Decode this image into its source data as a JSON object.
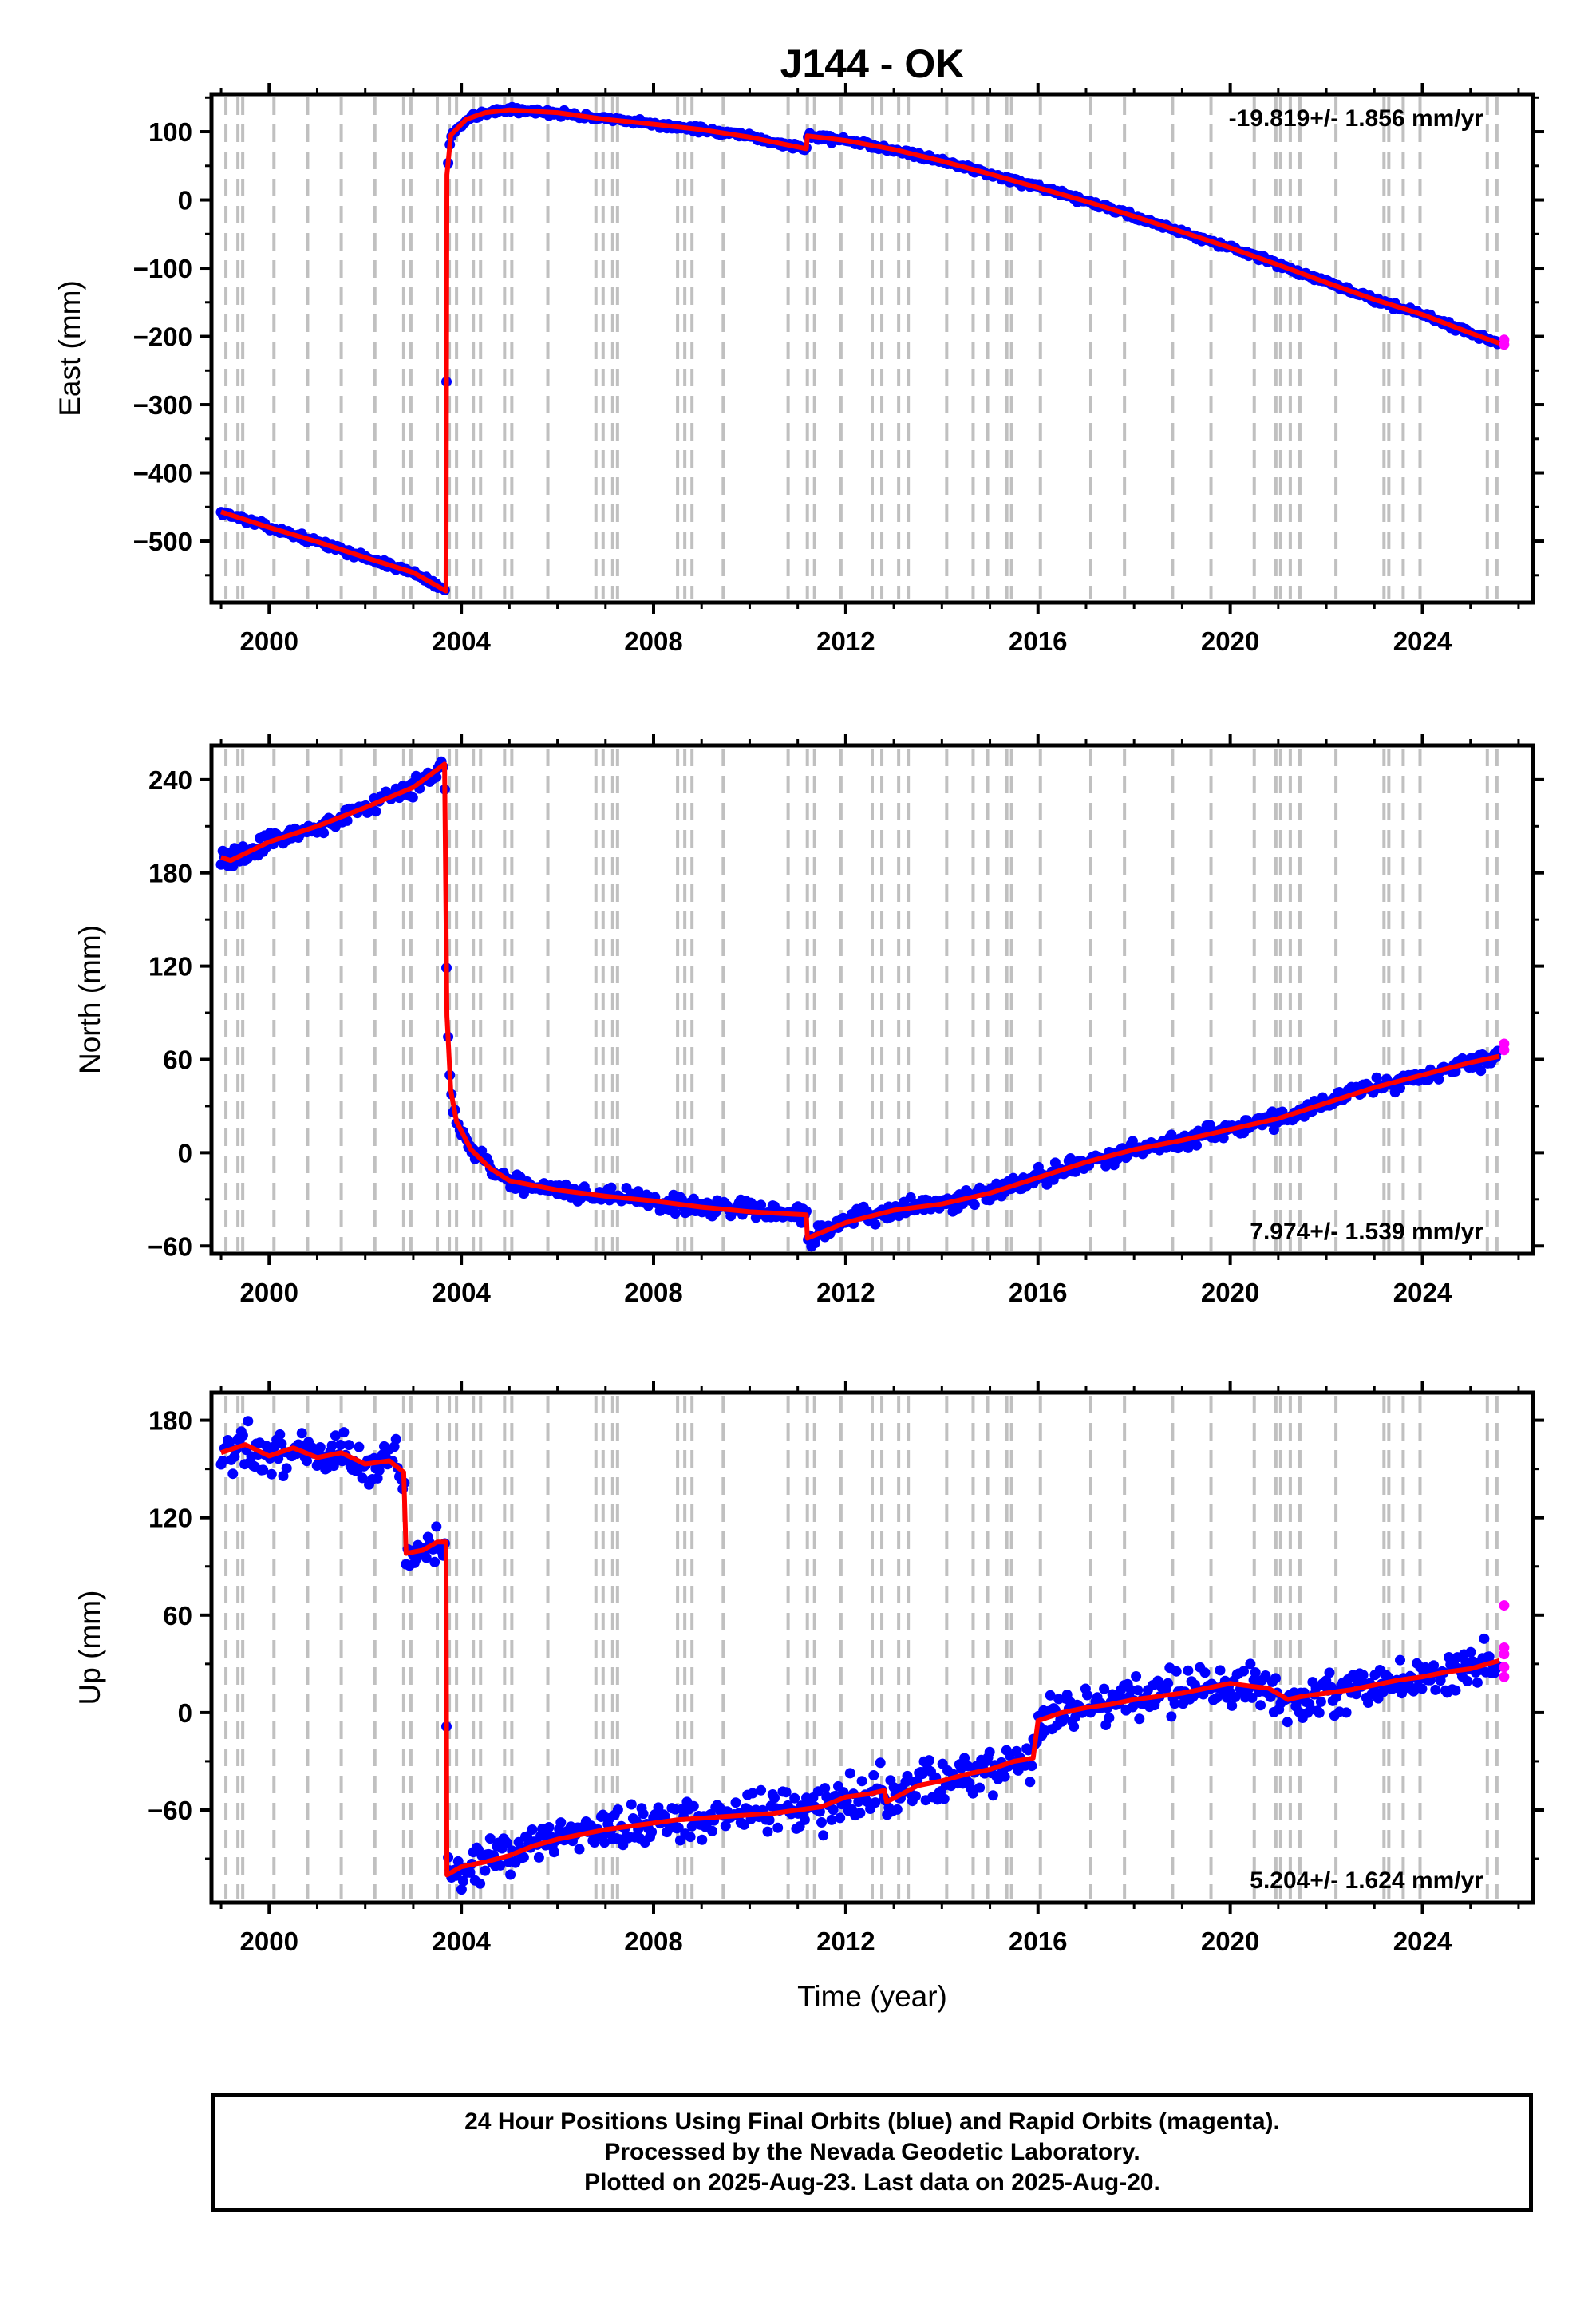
{
  "title": "J144 - OK",
  "colors": {
    "final_orbits": "#0000ff",
    "rapid_orbits": "#ff00ff",
    "model": "#ff0000",
    "event_lines": "#c0c0c0"
  },
  "chart_data": [
    {
      "type": "scatter",
      "ylabel": "East (mm)",
      "rate": "-19.819+/- 1.856 mm/yr",
      "xlim": [
        1998.8,
        2026.3
      ],
      "ylim": [
        -590,
        155
      ],
      "yticks": [
        100,
        0,
        -100,
        -200,
        -300,
        -400,
        -500
      ],
      "xticks": [
        2000,
        2004,
        2008,
        2012,
        2016,
        2020,
        2024
      ],
      "grid": false,
      "x": [
        1999.0,
        2000.0,
        2001.0,
        2002.0,
        2003.0,
        2003.68,
        2003.7,
        2003.78,
        2004.1,
        2004.5,
        2005.0,
        2006.0,
        2007.0,
        2008.0,
        2009.0,
        2010.0,
        2011.18,
        2011.2,
        2012.0,
        2013.0,
        2014.0,
        2015.0,
        2016.0,
        2017.0,
        2018.0,
        2019.0,
        2020.0,
        2021.0,
        2022.0,
        2023.0,
        2024.0,
        2025.0,
        2025.6
      ],
      "y": [
        -457,
        -480,
        -501,
        -524,
        -546,
        -573,
        37,
        95,
        118,
        128,
        132,
        128,
        118,
        111,
        103,
        92,
        75,
        94,
        87,
        74,
        57,
        38,
        18,
        -2,
        -24,
        -47,
        -70,
        -95,
        -121,
        -146,
        -168,
        -195,
        -210
      ],
      "rapid_y": [
        -205,
        -212
      ]
    },
    {
      "type": "scatter",
      "ylabel": "North (mm)",
      "rate": "7.974+/- 1.539 mm/yr",
      "xlim": [
        1998.8,
        2026.3
      ],
      "ylim": [
        -65,
        262
      ],
      "yticks": [
        240,
        180,
        120,
        60,
        0,
        -60
      ],
      "xticks": [
        2000,
        2004,
        2008,
        2012,
        2016,
        2020,
        2024
      ],
      "grid": false,
      "x": [
        1999.0,
        1999.2,
        2000.0,
        2001.0,
        2002.0,
        2003.0,
        2003.65,
        2003.7,
        2003.78,
        2003.9,
        2004.2,
        2004.6,
        2005.0,
        2006.0,
        2007.0,
        2008.0,
        2009.0,
        2010.0,
        2011.18,
        2011.2,
        2012.0,
        2013.0,
        2014.0,
        2015.0,
        2016.0,
        2017.0,
        2018.0,
        2019.0,
        2020.0,
        2021.0,
        2022.0,
        2023.0,
        2024.0,
        2025.0,
        2025.6
      ],
      "y": [
        190,
        188,
        200,
        210,
        222,
        235,
        250,
        88,
        40,
        20,
        2,
        -10,
        -18,
        -24,
        -28,
        -31,
        -35,
        -38,
        -40,
        -55,
        -45,
        -37,
        -33,
        -26,
        -16,
        -6,
        2,
        8,
        15,
        22,
        32,
        42,
        50,
        58,
        62
      ],
      "rapid_y": [
        66,
        70
      ]
    },
    {
      "type": "scatter",
      "ylabel": "Up (mm)",
      "xlabel": "Time (year)",
      "rate": "5.204+/- 1.624 mm/yr",
      "xlim": [
        1998.8,
        2026.3
      ],
      "ylim": [
        -117,
        197
      ],
      "yticks": [
        180,
        120,
        60,
        0,
        -60
      ],
      "xticks": [
        2000,
        2004,
        2008,
        2012,
        2016,
        2020,
        2024
      ],
      "grid": false,
      "x": [
        1999.0,
        1999.5,
        2000.0,
        2000.5,
        2001.0,
        2001.5,
        2002.0,
        2002.5,
        2002.8,
        2002.85,
        2003.2,
        2003.5,
        2003.68,
        2003.7,
        2004.0,
        2004.5,
        2005.0,
        2005.5,
        2006.0,
        2006.5,
        2007.0,
        2007.5,
        2008.0,
        2008.5,
        2009.0,
        2009.5,
        2010.0,
        2010.5,
        2011.0,
        2011.5,
        2012.0,
        2012.5,
        2012.8,
        2012.85,
        2013.5,
        2014.0,
        2014.5,
        2015.0,
        2015.5,
        2015.9,
        2016.0,
        2016.5,
        2017.0,
        2017.5,
        2018.0,
        2018.5,
        2019.0,
        2019.5,
        2020.0,
        2020.5,
        2020.8,
        2021.2,
        2021.5,
        2022.0,
        2022.5,
        2023.0,
        2023.5,
        2024.0,
        2024.5,
        2025.0,
        2025.6
      ],
      "y": [
        160,
        165,
        158,
        163,
        157,
        160,
        153,
        155,
        148,
        98,
        100,
        105,
        105,
        -100,
        -95,
        -92,
        -88,
        -82,
        -78,
        -75,
        -72,
        -70,
        -68,
        -66,
        -65,
        -64,
        -63,
        -62,
        -60,
        -58,
        -52,
        -50,
        -48,
        -55,
        -45,
        -42,
        -38,
        -35,
        -30,
        -28,
        -5,
        0,
        3,
        5,
        8,
        10,
        12,
        15,
        18,
        16,
        15,
        8,
        10,
        12,
        14,
        17,
        20,
        22,
        25,
        27,
        32
      ],
      "rapid_y": [
        22,
        28,
        36,
        40,
        66
      ]
    }
  ],
  "event_lines": [
    1999.1,
    1999.35,
    1999.45,
    2000.1,
    2000.8,
    2001.5,
    2002.2,
    2002.8,
    2002.95,
    2003.5,
    2003.75,
    2003.9,
    2004.25,
    2004.4,
    2004.9,
    2005.05,
    2005.8,
    2006.8,
    2006.95,
    2007.15,
    2007.25,
    2008.5,
    2008.65,
    2008.8,
    2009.45,
    2010.8,
    2011.2,
    2011.35,
    2011.9,
    2012.55,
    2012.75,
    2013.1,
    2013.3,
    2014.1,
    2014.65,
    2014.95,
    2015.35,
    2015.45,
    2016.05,
    2017.1,
    2017.8,
    2018.8,
    2019.6,
    2020.5,
    2020.95,
    2021.05,
    2021.25,
    2021.45,
    2022.2,
    2023.2,
    2023.3,
    2023.6,
    2023.95,
    2025.35,
    2025.55
  ],
  "footer": {
    "line1": "24 Hour Positions Using Final Orbits (blue) and Rapid Orbits (magenta).",
    "line2": "Processed by the Nevada Geodetic Laboratory.",
    "line3": "Plotted on 2025-Aug-23. Last data on 2025-Aug-20."
  }
}
